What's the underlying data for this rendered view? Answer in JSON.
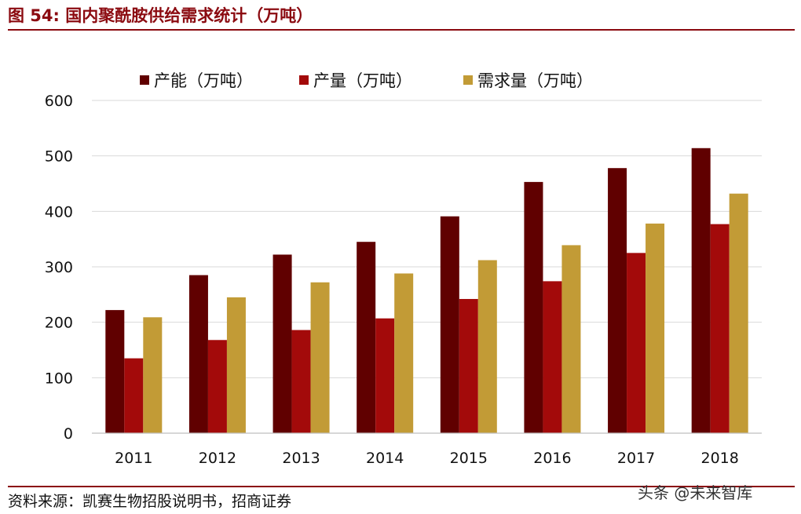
{
  "header": {
    "title": "图 54:  国内聚酰胺供给需求统计（万吨）"
  },
  "footer": {
    "source": "资料来源：凯赛生物招股说明书，招商证券",
    "watermark": "头条 @未来智库"
  },
  "chart_data": {
    "type": "bar",
    "title": "国内聚酰胺供给需求统计（万吨）",
    "categories": [
      "2011",
      "2012",
      "2013",
      "2014",
      "2015",
      "2016",
      "2017",
      "2018"
    ],
    "series": [
      {
        "name": "产能（万吨）",
        "color": "#600000",
        "values": [
          222,
          285,
          322,
          345,
          391,
          453,
          478,
          514
        ]
      },
      {
        "name": "产量（万吨）",
        "color": "#a30a0a",
        "values": [
          135,
          168,
          186,
          207,
          242,
          274,
          325,
          377
        ]
      },
      {
        "name": "需求量（万吨）",
        "color": "#c29b36",
        "values": [
          209,
          245,
          272,
          288,
          312,
          339,
          378,
          432
        ]
      }
    ],
    "yticks": [
      "0",
      "100",
      "200",
      "300",
      "400",
      "500",
      "600"
    ],
    "ylim": [
      0,
      600
    ],
    "grid": true,
    "legend_position": "top-center",
    "xlabel": "",
    "ylabel": ""
  }
}
